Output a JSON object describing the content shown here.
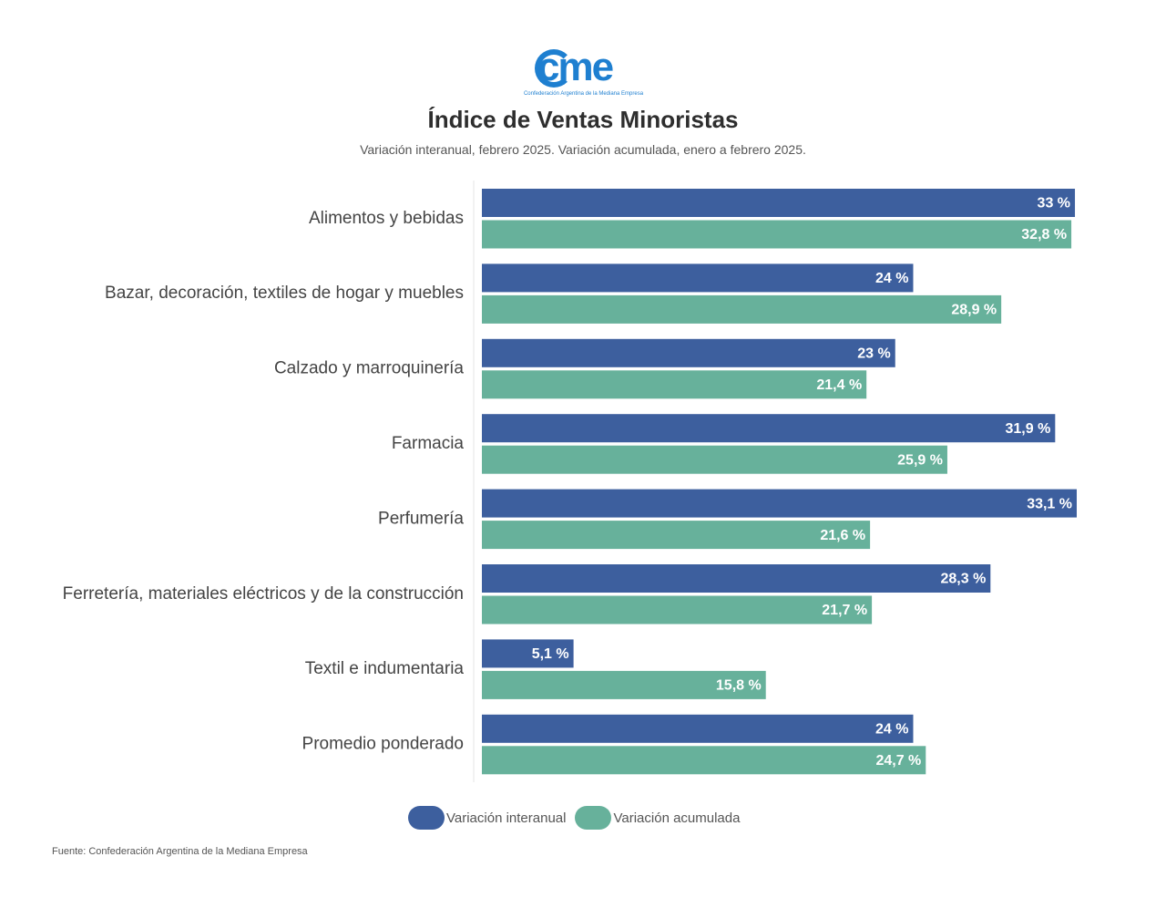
{
  "logo": {
    "text": "cme",
    "subtitle": "Confederación Argentina de la Mediana Empresa"
  },
  "header": {
    "title": "Índice de Ventas Minoristas",
    "subtitle": "Variación interanual, febrero 2025. Variación acumulada, enero a febrero 2025."
  },
  "colors": {
    "interanual": "#3d5f9e",
    "acumulada": "#67b19b"
  },
  "chart_data": {
    "type": "bar",
    "orientation": "horizontal",
    "categories": [
      "Alimentos y bebidas",
      "Bazar, decoración, textiles de hogar y muebles",
      "Calzado y marroquinería",
      "Farmacia",
      "Perfumería",
      "Ferretería, materiales eléctricos y de la construcción",
      "Textil e indumentaria",
      "Promedio ponderado"
    ],
    "series": [
      {
        "name": "Variación interanual",
        "values": [
          33,
          24,
          23,
          31.9,
          33.1,
          28.3,
          5.1,
          24
        ],
        "labels": [
          "33 %",
          "24 %",
          "23 %",
          "31,9 %",
          "33,1 %",
          "28,3 %",
          "5,1 %",
          "24 %"
        ]
      },
      {
        "name": "Variación acumulada",
        "values": [
          32.8,
          28.9,
          21.4,
          25.9,
          21.6,
          21.7,
          15.8,
          24.7
        ],
        "labels": [
          "32,8 %",
          "28,9 %",
          "21,4 %",
          "25,9 %",
          "21,6 %",
          "21,7 %",
          "15,8 %",
          "24,7 %"
        ]
      }
    ],
    "xlim": [
      0,
      33.1
    ],
    "grid": false,
    "legend_position": "bottom"
  },
  "legend": {
    "interanual_label": "Variación interanual",
    "acumulada_label": "Variación acumulada"
  },
  "source": "Fuente: Confederación Argentina de la Mediana Empresa"
}
